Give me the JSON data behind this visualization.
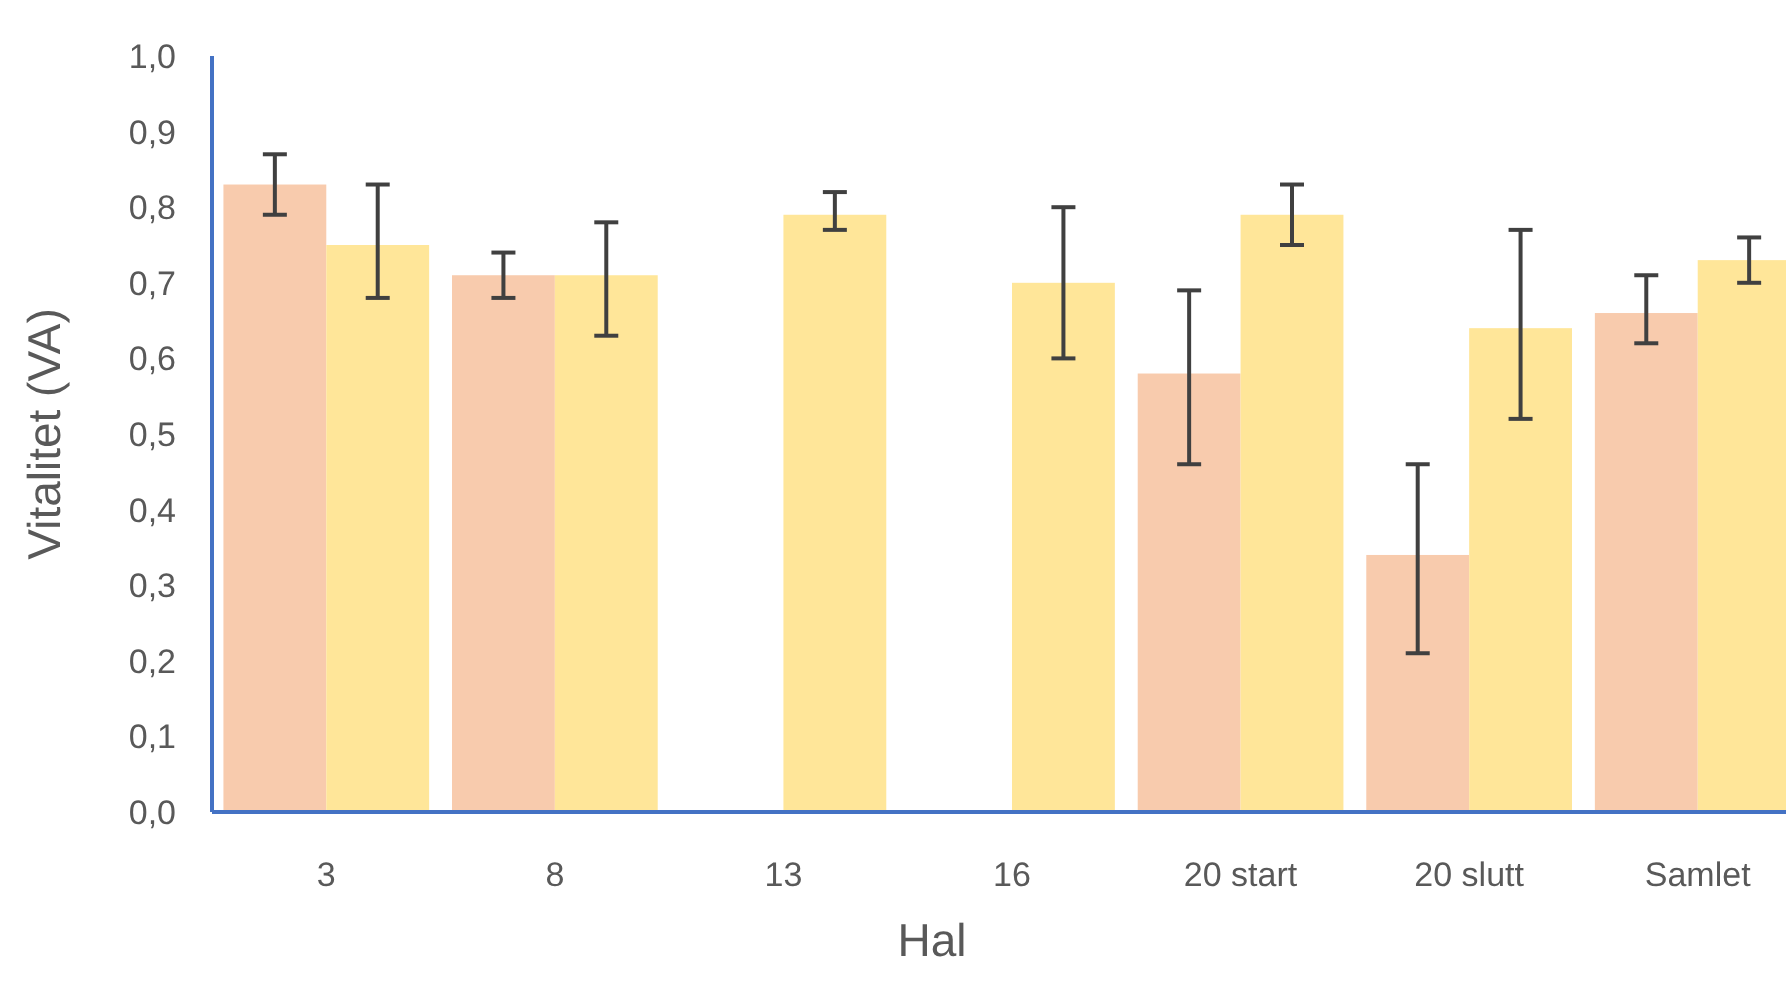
{
  "chart_data": {
    "type": "bar",
    "xlabel": "Hal",
    "ylabel": "Vitalitet (VA)",
    "categories": [
      "3",
      "8",
      "13",
      "16",
      "20 start",
      "20 slutt",
      "Samlet"
    ],
    "series": [
      {
        "color": "#f8cbad",
        "values": [
          0.83,
          0.71,
          null,
          null,
          0.58,
          0.34,
          0.66
        ],
        "errors": [
          [
            0.79,
            0.87
          ],
          [
            0.68,
            0.74
          ],
          null,
          null,
          [
            0.46,
            0.69
          ],
          [
            0.21,
            0.46
          ],
          [
            0.62,
            0.71
          ]
        ]
      },
      {
        "color": "#ffe699",
        "values": [
          0.75,
          0.71,
          0.79,
          0.7,
          0.79,
          0.64,
          0.73
        ],
        "errors": [
          [
            0.68,
            0.83
          ],
          [
            0.63,
            0.78
          ],
          [
            0.77,
            0.82
          ],
          [
            0.6,
            0.8
          ],
          [
            0.75,
            0.83
          ],
          [
            0.52,
            0.77
          ],
          [
            0.7,
            0.76
          ]
        ]
      }
    ],
    "ylim": [
      0,
      1
    ],
    "yticks": [
      {
        "value": 0,
        "label": "0,0"
      },
      {
        "value": 0.1,
        "label": "0,1"
      },
      {
        "value": 0.2,
        "label": "0,2"
      },
      {
        "value": 0.3,
        "label": "0,3"
      },
      {
        "value": 0.4,
        "label": "0,4"
      },
      {
        "value": 0.5,
        "label": "0,5"
      },
      {
        "value": 0.6,
        "label": "0,6"
      },
      {
        "value": 0.7,
        "label": "0,7"
      },
      {
        "value": 0.8,
        "label": "0,8"
      },
      {
        "value": 0.9,
        "label": "0,9"
      },
      {
        "value": 1,
        "label": "1,0"
      }
    ],
    "grid": false
  }
}
